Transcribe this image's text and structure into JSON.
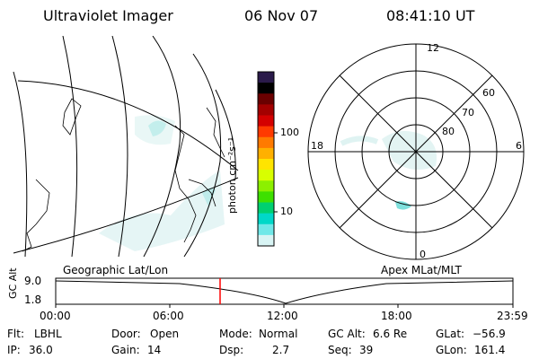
{
  "header": {
    "instrument": "Ultraviolet Imager",
    "date": "06 Nov 07",
    "time": "08:41:10 UT"
  },
  "colorbar": {
    "unit_label": "photon cm⁻²s⁻¹",
    "ticks": [
      "100",
      "10"
    ],
    "colors": [
      "#2a1a4a",
      "#000000",
      "#6a0000",
      "#a30000",
      "#d40000",
      "#ff3a00",
      "#ff7a00",
      "#ffb000",
      "#ffe400",
      "#d8ff00",
      "#8cf000",
      "#3ee000",
      "#00d070",
      "#00d8c8",
      "#70e8e8",
      "#d8f4f4"
    ]
  },
  "geo_panel": {
    "label": "Geographic Lat/Lon"
  },
  "polar_panel": {
    "label": "Apex MLat/MLT",
    "mlt_labels": {
      "top": "12",
      "left": "18",
      "right": "6",
      "bottom": "0"
    },
    "lat_labels": [
      "60",
      "70",
      "80"
    ]
  },
  "timeline": {
    "y_axis_title": "GC Alt",
    "y_ticks": [
      "9.0",
      "1.8"
    ],
    "x_ticks": [
      "00:00",
      "06:00",
      "12:00",
      "18:00",
      "23:59"
    ],
    "marker_color": "#ff0000"
  },
  "footer": {
    "row1": [
      {
        "label": "Flt:",
        "value": "LBHL"
      },
      {
        "label": "Door:",
        "value": "Open"
      },
      {
        "label": "Mode:",
        "value": "Normal"
      },
      {
        "label": "GC Alt:",
        "value": "6.6 Re"
      },
      {
        "label": "GLat:",
        "value": "−56.9"
      }
    ],
    "row2": [
      {
        "label": "IP:",
        "value": "36.0"
      },
      {
        "label": "Gain:",
        "value": "14"
      },
      {
        "label": "Dsp:",
        "value": "2.7"
      },
      {
        "label": "Seq:",
        "value": "39"
      },
      {
        "label": "GLon:",
        "value": "161.4"
      }
    ]
  }
}
